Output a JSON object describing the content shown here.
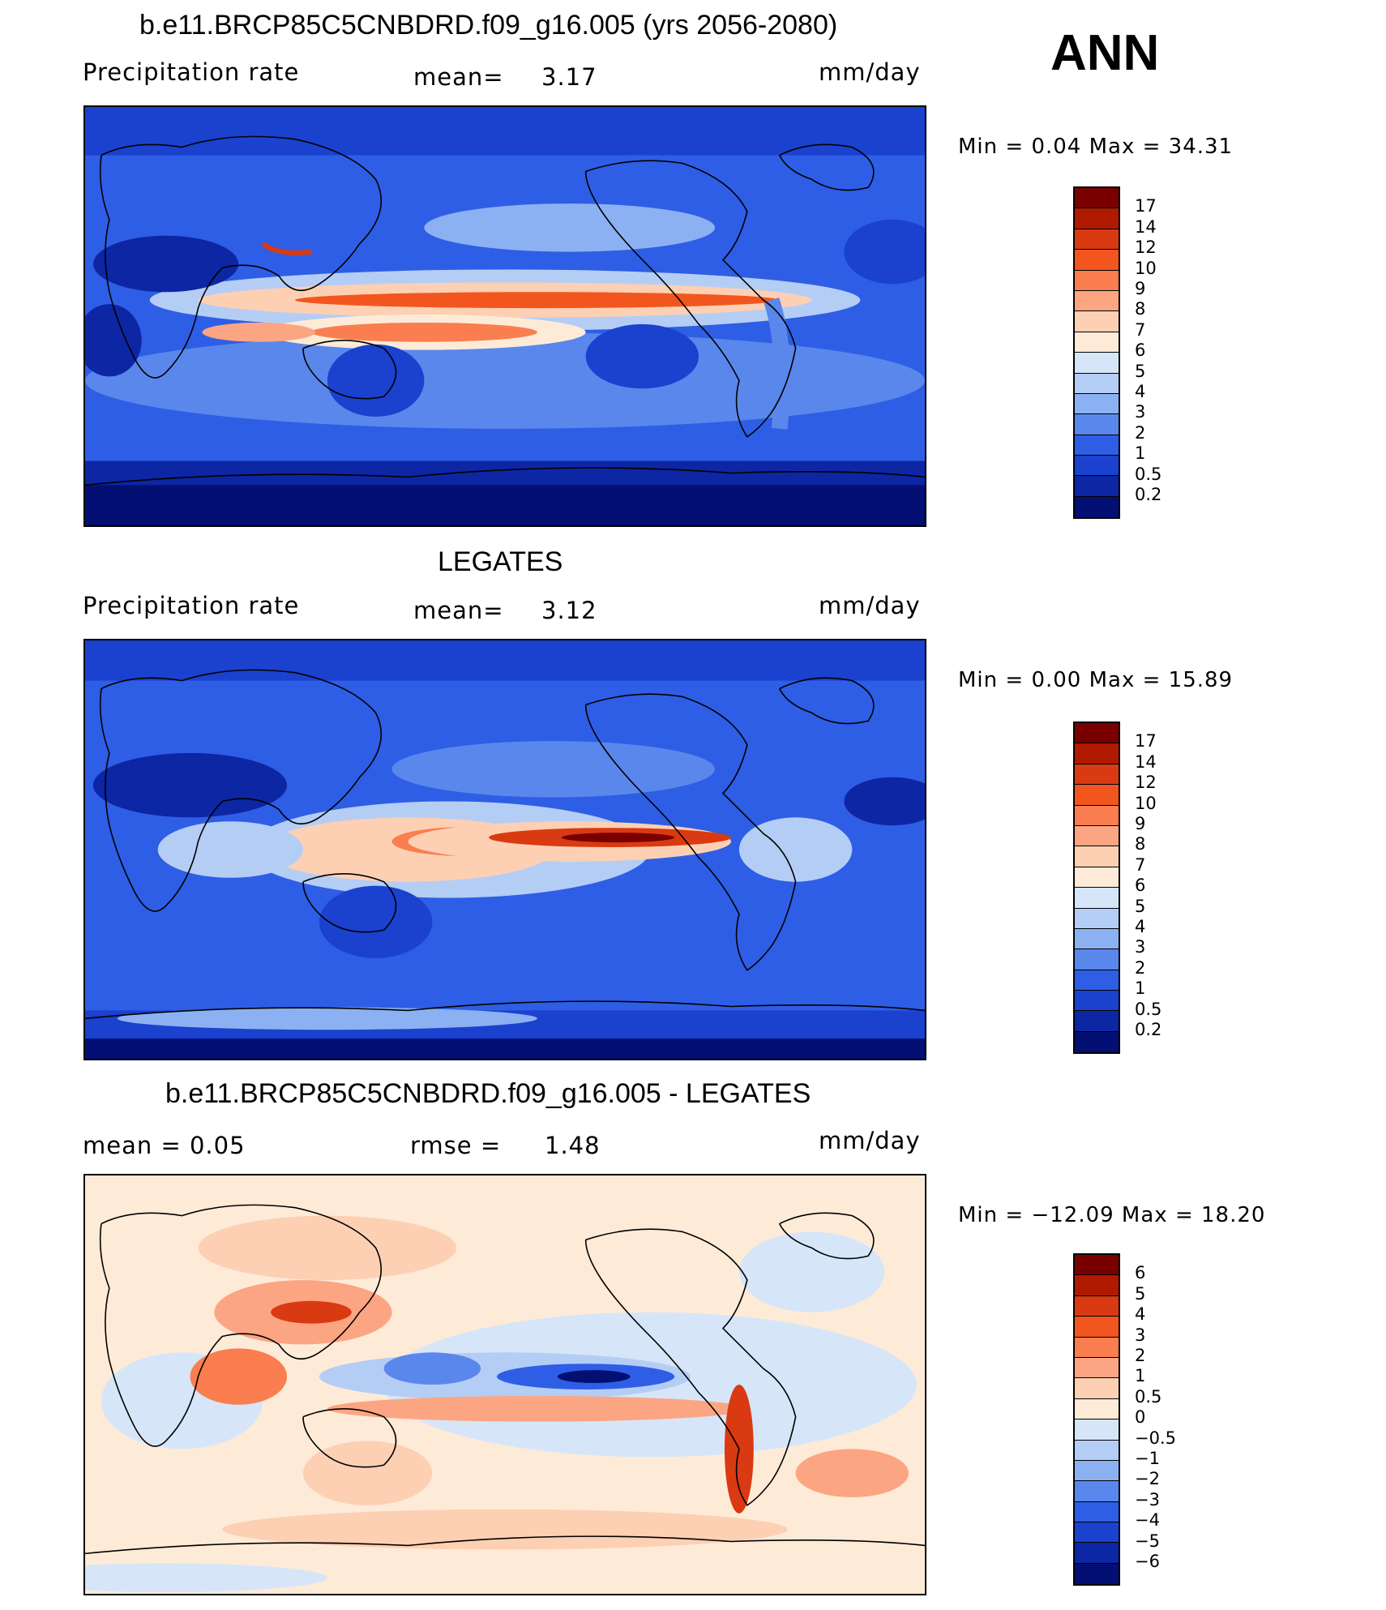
{
  "header": {
    "ann_label": "ANN"
  },
  "panels": [
    {
      "id": "model",
      "title": "b.e11.BRCP85C5CNBDRD.f09_g16.005 (yrs 2056-2080)",
      "variable": "Precipitation  rate",
      "stat_label": "mean=",
      "stat_value": "3.17",
      "units": "mm/day",
      "minmax": "Min  =    0.04  Max  =   34.31",
      "colorbar_levels": [
        "17",
        "14",
        "12",
        "10",
        "9",
        "8",
        "7",
        "6",
        "5",
        "4",
        "3",
        "2",
        "1",
        "0.5",
        "0.2"
      ],
      "colorbar_colors": [
        "#7a0000",
        "#b01a00",
        "#d93a12",
        "#f2561e",
        "#fa7e4f",
        "#fca583",
        "#fdd0b4",
        "#fdebd8",
        "#d6e6f8",
        "#b4cdf5",
        "#8cb1f2",
        "#5a87eb",
        "#2e5ee5",
        "#1b41cf",
        "#0d26a3",
        "#030f73"
      ]
    },
    {
      "id": "obs",
      "title": "LEGATES",
      "variable": "Precipitation  rate",
      "stat_label": "mean=",
      "stat_value": "3.12",
      "units": "mm/day",
      "minmax": "Min  =    0.00  Max  =   15.89",
      "colorbar_levels": [
        "17",
        "14",
        "12",
        "10",
        "9",
        "8",
        "7",
        "6",
        "5",
        "4",
        "3",
        "2",
        "1",
        "0.5",
        "0.2"
      ],
      "colorbar_colors": [
        "#7a0000",
        "#b01a00",
        "#d93a12",
        "#f2561e",
        "#fa7e4f",
        "#fca583",
        "#fdd0b4",
        "#fdebd8",
        "#d6e6f8",
        "#b4cdf5",
        "#8cb1f2",
        "#5a87eb",
        "#2e5ee5",
        "#1b41cf",
        "#0d26a3",
        "#030f73"
      ]
    },
    {
      "id": "diff",
      "title": "b.e11.BRCP85C5CNBDRD.f09_g16.005 - LEGATES",
      "variable": "mean  =      0.05",
      "stat_label": "rmse  =",
      "stat_value": "1.48",
      "units": "mm/day",
      "minmax": "Min  = −12.09  Max  =    18.20",
      "colorbar_levels": [
        "6",
        "5",
        "4",
        "3",
        "2",
        "1",
        "0.5",
        "0",
        "−0.5",
        "−1",
        "−2",
        "−3",
        "−4",
        "−5",
        "−6"
      ],
      "colorbar_colors": [
        "#7a0000",
        "#b01a00",
        "#d93a12",
        "#f2561e",
        "#fa7e4f",
        "#fca583",
        "#fdd0b4",
        "#fdebd8",
        "#d6e6f8",
        "#b4cdf5",
        "#8cb1f2",
        "#5a87eb",
        "#2e5ee5",
        "#1b41cf",
        "#0d26a3",
        "#030f73"
      ]
    }
  ]
}
